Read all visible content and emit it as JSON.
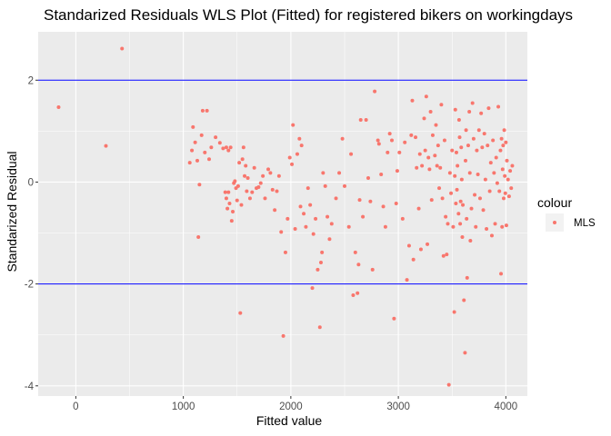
{
  "chart_data": {
    "type": "scatter",
    "title": "Standarized Residuals WLS Plot (Fitted) for registered bikers on workingdays",
    "xlabel": "Fitted value",
    "ylabel": "Standarized Residual",
    "xlim": [
      -350,
      4200
    ],
    "ylim": [
      -4.2,
      2.95
    ],
    "x_ticks": [
      0,
      1000,
      2000,
      3000,
      4000
    ],
    "x_tick_labels": [
      "0",
      "1000",
      "2000",
      "3000",
      "4000"
    ],
    "y_ticks": [
      -4,
      -2,
      0,
      2
    ],
    "y_tick_labels": [
      "-4",
      "-2",
      "0",
      "2"
    ],
    "grid": true,
    "hlines": [
      2,
      -2
    ],
    "hline_color": "#0000ff",
    "panel_background": "#ebebeb",
    "point_color": "#f8766d",
    "legend": {
      "title": "colour",
      "position": "right",
      "entries": [
        "MLS"
      ]
    },
    "series": [
      {
        "name": "MLS",
        "points": [
          [
            -160,
            1.47
          ],
          [
            280,
            0.71
          ],
          [
            430,
            2.62
          ],
          [
            1060,
            0.38
          ],
          [
            1080,
            0.62
          ],
          [
            1090,
            1.08
          ],
          [
            1110,
            0.78
          ],
          [
            1130,
            0.42
          ],
          [
            1140,
            -1.08
          ],
          [
            1150,
            -0.05
          ],
          [
            1170,
            0.92
          ],
          [
            1180,
            1.4
          ],
          [
            1200,
            0.58
          ],
          [
            1220,
            1.4
          ],
          [
            1240,
            0.45
          ],
          [
            1260,
            0.68
          ],
          [
            1300,
            0.88
          ],
          [
            1340,
            0.77
          ],
          [
            1370,
            0.66
          ],
          [
            1400,
            0.68
          ],
          [
            1420,
            0.62
          ],
          [
            1440,
            0.68
          ],
          [
            1390,
            -0.2
          ],
          [
            1400,
            -0.32
          ],
          [
            1410,
            -0.52
          ],
          [
            1420,
            -0.2
          ],
          [
            1430,
            -0.42
          ],
          [
            1450,
            -0.76
          ],
          [
            1460,
            -0.58
          ],
          [
            1470,
            -0.02
          ],
          [
            1480,
            0.02
          ],
          [
            1490,
            -0.12
          ],
          [
            1500,
            -0.36
          ],
          [
            1510,
            -0.08
          ],
          [
            1520,
            0.38
          ],
          [
            1530,
            -2.57
          ],
          [
            1540,
            -0.45
          ],
          [
            1550,
            0.45
          ],
          [
            1560,
            0.68
          ],
          [
            1570,
            0.12
          ],
          [
            1580,
            0.32
          ],
          [
            1590,
            -0.18
          ],
          [
            1600,
            0.08
          ],
          [
            1620,
            -0.32
          ],
          [
            1640,
            -0.2
          ],
          [
            1660,
            0.28
          ],
          [
            1680,
            -0.12
          ],
          [
            1700,
            -0.1
          ],
          [
            1720,
            -0.02
          ],
          [
            1740,
            0.12
          ],
          [
            1760,
            -0.32
          ],
          [
            1790,
            0.25
          ],
          [
            1810,
            0.18
          ],
          [
            1830,
            -0.15
          ],
          [
            1850,
            -0.55
          ],
          [
            1870,
            -0.18
          ],
          [
            1890,
            0.12
          ],
          [
            1910,
            -0.98
          ],
          [
            1930,
            -3.02
          ],
          [
            1950,
            -1.38
          ],
          [
            1970,
            -0.72
          ],
          [
            1990,
            0.48
          ],
          [
            2010,
            0.35
          ],
          [
            2020,
            1.12
          ],
          [
            2040,
            -0.92
          ],
          [
            2060,
            0.55
          ],
          [
            2080,
            0.85
          ],
          [
            2090,
            -0.48
          ],
          [
            2100,
            0.72
          ],
          [
            2120,
            -0.62
          ],
          [
            2140,
            -0.88
          ],
          [
            2160,
            -0.12
          ],
          [
            2180,
            -0.45
          ],
          [
            2200,
            -2.08
          ],
          [
            2210,
            -1.02
          ],
          [
            2230,
            -0.72
          ],
          [
            2250,
            -1.72
          ],
          [
            2270,
            -2.85
          ],
          [
            2280,
            -1.58
          ],
          [
            2290,
            -1.38
          ],
          [
            2300,
            0.18
          ],
          [
            2320,
            -0.08
          ],
          [
            2340,
            -0.68
          ],
          [
            2360,
            -1.12
          ],
          [
            2380,
            -0.82
          ],
          [
            2420,
            -0.32
          ],
          [
            2450,
            0.18
          ],
          [
            2480,
            0.85
          ],
          [
            2500,
            -0.08
          ],
          [
            2540,
            -0.88
          ],
          [
            2560,
            0.55
          ],
          [
            2580,
            -2.22
          ],
          [
            2600,
            -1.38
          ],
          [
            2620,
            -2.18
          ],
          [
            2630,
            -1.62
          ],
          [
            2640,
            -0.35
          ],
          [
            2650,
            1.22
          ],
          [
            2670,
            -0.68
          ],
          [
            2700,
            1.22
          ],
          [
            2720,
            0.08
          ],
          [
            2740,
            -0.38
          ],
          [
            2760,
            -1.72
          ],
          [
            2780,
            1.78
          ],
          [
            2810,
            0.82
          ],
          [
            2820,
            0.75
          ],
          [
            2840,
            0.15
          ],
          [
            2860,
            -0.48
          ],
          [
            2880,
            -0.88
          ],
          [
            2900,
            0.58
          ],
          [
            2920,
            0.95
          ],
          [
            2940,
            0.82
          ],
          [
            2960,
            -2.68
          ],
          [
            2980,
            -0.42
          ],
          [
            2990,
            0.22
          ],
          [
            3010,
            0.58
          ],
          [
            3040,
            -0.72
          ],
          [
            3060,
            0.78
          ],
          [
            3080,
            -1.92
          ],
          [
            3100,
            -1.25
          ],
          [
            3120,
            0.92
          ],
          [
            3130,
            1.6
          ],
          [
            3140,
            -1.52
          ],
          [
            3160,
            0.88
          ],
          [
            3170,
            0.28
          ],
          [
            3190,
            -0.52
          ],
          [
            3200,
            0.55
          ],
          [
            3210,
            -1.32
          ],
          [
            3220,
            0.32
          ],
          [
            3240,
            1.25
          ],
          [
            3250,
            0.62
          ],
          [
            3260,
            1.68
          ],
          [
            3270,
            -1.22
          ],
          [
            3280,
            0.48
          ],
          [
            3290,
            0.25
          ],
          [
            3300,
            1.38
          ],
          [
            3310,
            -0.35
          ],
          [
            3320,
            0.92
          ],
          [
            3340,
            0.52
          ],
          [
            3350,
            1.12
          ],
          [
            3360,
            0.32
          ],
          [
            3370,
            0.72
          ],
          [
            3380,
            -0.12
          ],
          [
            3390,
            0.28
          ],
          [
            3400,
            1.52
          ],
          [
            3410,
            -0.32
          ],
          [
            3420,
            -1.45
          ],
          [
            3430,
            0.82
          ],
          [
            3440,
            -0.68
          ],
          [
            3450,
            -1.42
          ],
          [
            3460,
            -0.82
          ],
          [
            3470,
            -3.98
          ],
          [
            3480,
            0.18
          ],
          [
            3490,
            -0.22
          ],
          [
            3500,
            0.62
          ],
          [
            3510,
            -0.88
          ],
          [
            3520,
            -2.55
          ],
          [
            3525,
            0.12
          ],
          [
            3530,
            1.42
          ],
          [
            3535,
            -0.42
          ],
          [
            3540,
            0.58
          ],
          [
            3545,
            -0.15
          ],
          [
            3550,
            0.32
          ],
          [
            3560,
            -0.62
          ],
          [
            3565,
            1.22
          ],
          [
            3570,
            0.88
          ],
          [
            3575,
            -0.82
          ],
          [
            3580,
            -0.38
          ],
          [
            3585,
            0.68
          ],
          [
            3590,
            0.05
          ],
          [
            3595,
            -1.08
          ],
          [
            3600,
            -0.45
          ],
          [
            3610,
            -2.32
          ],
          [
            3620,
            -3.35
          ],
          [
            3625,
            0.42
          ],
          [
            3630,
            1.02
          ],
          [
            3635,
            -0.72
          ],
          [
            3640,
            -1.88
          ],
          [
            3650,
            0.72
          ],
          [
            3660,
            1.38
          ],
          [
            3665,
            0.18
          ],
          [
            3670,
            -1.15
          ],
          [
            3680,
            -0.52
          ],
          [
            3690,
            1.55
          ],
          [
            3700,
            0.85
          ],
          [
            3710,
            -0.25
          ],
          [
            3720,
            -0.88
          ],
          [
            3730,
            0.62
          ],
          [
            3740,
            0.15
          ],
          [
            3750,
            1.02
          ],
          [
            3760,
            -0.32
          ],
          [
            3770,
            1.35
          ],
          [
            3780,
            0.68
          ],
          [
            3790,
            -0.55
          ],
          [
            3800,
            0.95
          ],
          [
            3810,
            0.05
          ],
          [
            3820,
            -0.92
          ],
          [
            3830,
            0.72
          ],
          [
            3840,
            1.45
          ],
          [
            3850,
            -0.18
          ],
          [
            3860,
            0.38
          ],
          [
            3870,
            -1.05
          ],
          [
            3880,
            0.82
          ],
          [
            3890,
            0.18
          ],
          [
            3900,
            -0.82
          ],
          [
            3910,
            0.48
          ],
          [
            3920,
            -0.02
          ],
          [
            3930,
            1.48
          ],
          [
            3940,
            -0.18
          ],
          [
            3950,
            0.62
          ],
          [
            3955,
            -1.8
          ],
          [
            3960,
            0.85
          ],
          [
            3965,
            -0.88
          ],
          [
            3970,
            0.25
          ],
          [
            3975,
            0.72
          ],
          [
            3980,
            -0.32
          ],
          [
            3985,
            1.02
          ],
          [
            3990,
            0.12
          ],
          [
            3995,
            -0.22
          ],
          [
            4000,
            0.78
          ],
          [
            4005,
            -0.85
          ],
          [
            4010,
            0.42
          ],
          [
            4020,
            0.05
          ],
          [
            4030,
            -0.28
          ],
          [
            4040,
            0.22
          ],
          [
            4050,
            -0.12
          ],
          [
            4060,
            0.32
          ]
        ]
      }
    ]
  }
}
